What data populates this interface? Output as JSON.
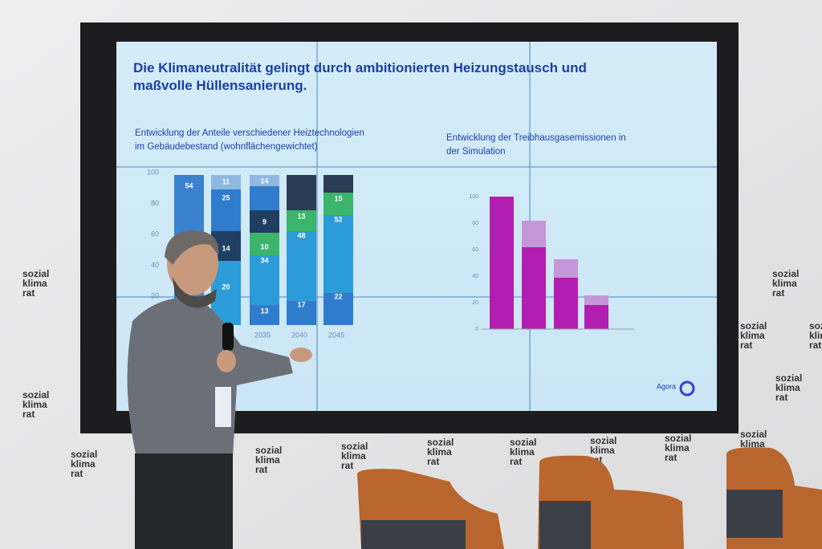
{
  "slide": {
    "title": "Die Klimaneutralität gelingt durch ambitionierten Heizungstausch und maßvolle Hüllensanierung.",
    "left_chart": {
      "title": "Entwicklung der Anteile verschiedener Heiztechnologien im Gebäudebestand (wohnflächengewichtet)",
      "yticks": [
        "100",
        "80",
        "60",
        "40",
        "20"
      ],
      "xlabels": [
        "2035",
        "2040",
        "2045"
      ],
      "bar_labels": [
        [
          "54"
        ],
        [
          "11",
          "25",
          "14",
          "20"
        ],
        [
          "14",
          "9",
          "10",
          "34",
          "13"
        ],
        [
          "13",
          "48",
          "17"
        ],
        [
          "15",
          "52",
          "22"
        ]
      ]
    },
    "right_chart": {
      "title": "Entwicklung der Treibhausgasemissionen in der Simulation",
      "yticks": [
        "100",
        "80",
        "60",
        "40",
        "20",
        "0"
      ]
    },
    "logo": "Agora"
  },
  "backdrop": {
    "brand": [
      "sozial",
      "klima",
      "rat"
    ]
  }
}
